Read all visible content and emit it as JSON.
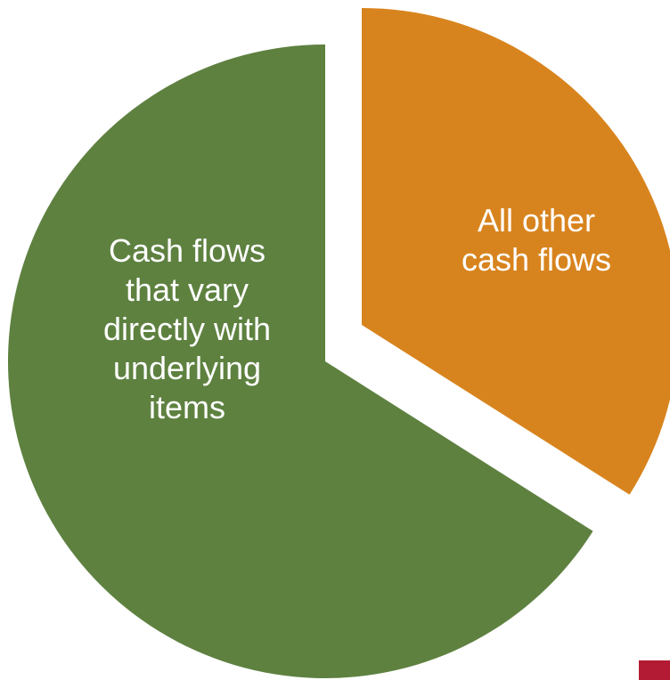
{
  "chart_data": {
    "type": "pie",
    "exploded": true,
    "title": "",
    "slices": [
      {
        "label_lines": [
          "All other",
          "cash flows"
        ],
        "value": 34,
        "color": "#D8841E"
      },
      {
        "label_lines": [
          "Cash flows",
          "that vary",
          "directly with",
          "underlying",
          "items"
        ],
        "value": 66,
        "color": "#5E8140"
      }
    ]
  },
  "decor": {
    "corner_accent_color": "#B31B34"
  }
}
